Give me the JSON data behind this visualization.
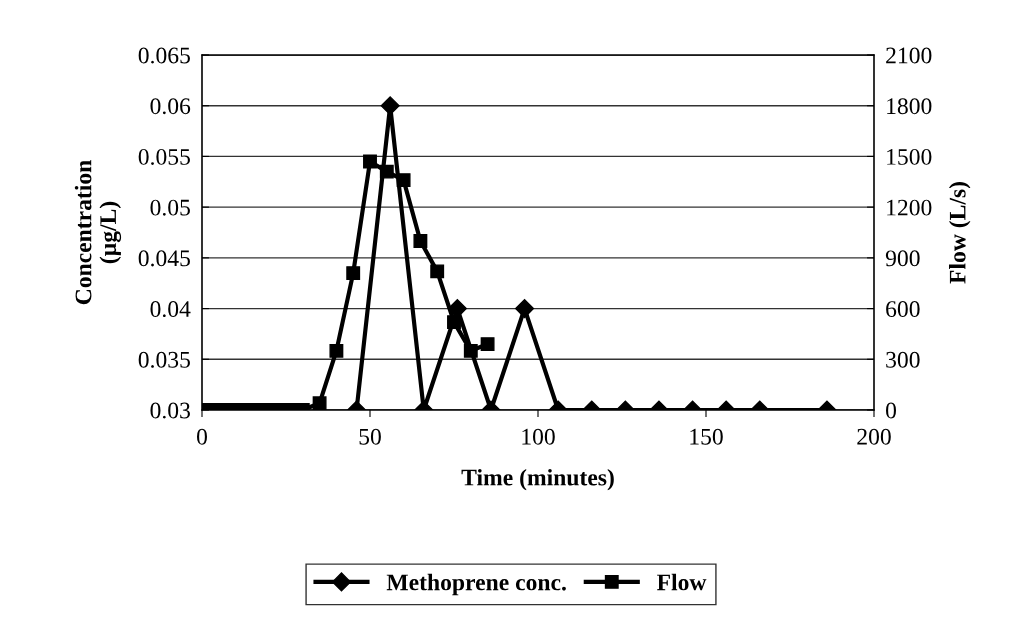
{
  "chart_data": {
    "type": "line",
    "xlabel": "Time (minutes)",
    "ylabel": "Concentration\n(µg/L)",
    "y2label": "Flow (L/s)",
    "xlim": [
      0,
      200
    ],
    "xticks": [
      0,
      50,
      100,
      150,
      200
    ],
    "ylim": [
      0.03,
      0.065
    ],
    "yticks": [
      0.03,
      0.035,
      0.04,
      0.045,
      0.05,
      0.055,
      0.06,
      0.065
    ],
    "y2lim": [
      0,
      2100
    ],
    "y2ticks": [
      0,
      300,
      600,
      900,
      1200,
      1500,
      1800,
      2100
    ],
    "grid": "y",
    "legend": "bottom",
    "line_style": "solid",
    "series": [
      {
        "name": "Methoprene conc.",
        "color": "#000000",
        "marker": "diamond",
        "x": [
          46,
          56,
          66,
          76,
          86,
          96,
          106,
          116,
          126,
          136,
          146,
          156,
          166,
          186
        ],
        "values": [
          0.03,
          0.06,
          0.03,
          0.04,
          0.03,
          0.04,
          0.03,
          0.03,
          0.03,
          0.03,
          0.03,
          0.03,
          0.03,
          0.03
        ]
      },
      {
        "name": "Flow",
        "color": "#000000",
        "marker": "square",
        "axis": "y2",
        "x": [
          0,
          2,
          4,
          6,
          8,
          10,
          12,
          14,
          16,
          18,
          20,
          22,
          24,
          26,
          28,
          30,
          35,
          40,
          45,
          50,
          55,
          60,
          65,
          70,
          75,
          80,
          85
        ],
        "values": [
          0,
          0,
          0,
          0,
          0,
          0,
          0,
          0,
          0,
          0,
          0,
          0,
          0,
          0,
          0,
          0,
          40,
          350,
          810,
          1470,
          1410,
          1360,
          1000,
          820,
          520,
          350,
          390
        ]
      }
    ]
  }
}
